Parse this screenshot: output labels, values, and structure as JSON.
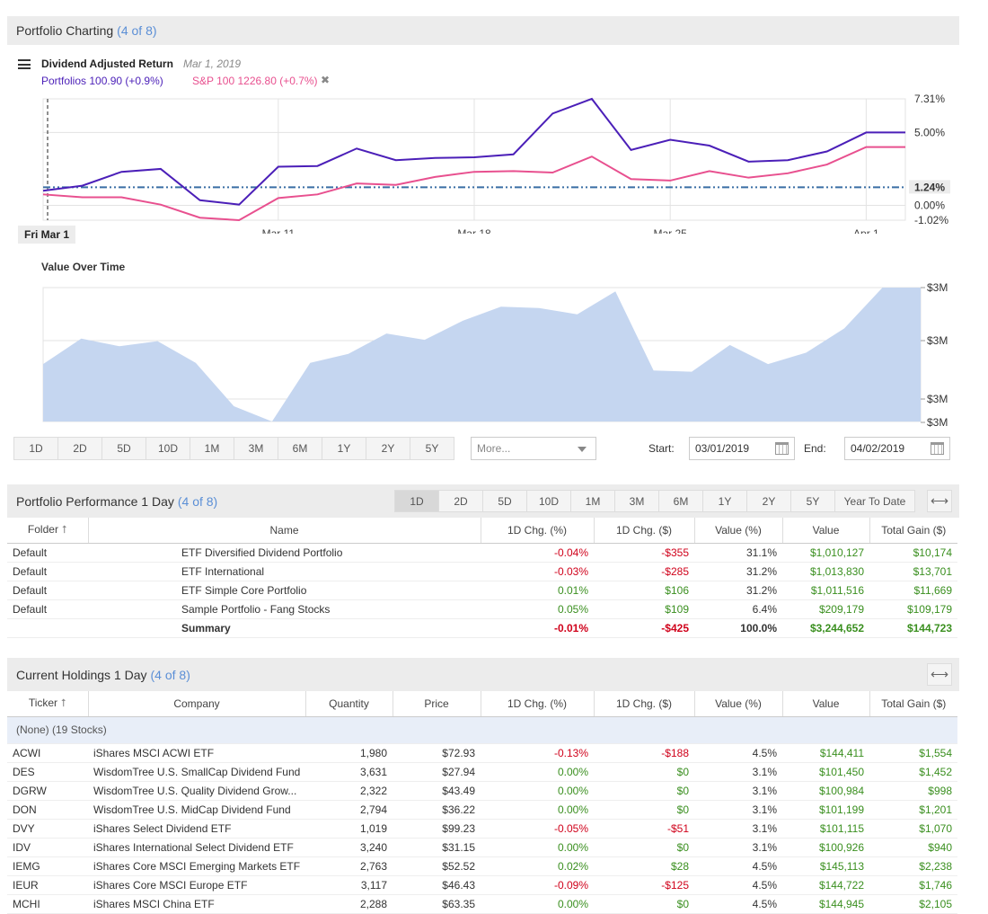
{
  "charting": {
    "title": "Portfolio Charting",
    "count": "(4 of 8)",
    "legend_title": "Dividend Adjusted Return",
    "legend_date": "Mar 1, 2019",
    "portfolio_legend": "Portfolios 100.90 (+0.9%)",
    "sp_legend": "S&P 100 1226.80 (+0.7%)",
    "remove_glyph": "✖",
    "current_date": "Fri Mar 1",
    "colors": {
      "portfolio": "#4b1fb8",
      "sp": "#e8508f",
      "baseline": "#3a6ea5",
      "area": "#c5d6f0"
    }
  },
  "chart_data": [
    {
      "type": "line",
      "title": "",
      "x_ticks": [
        "Mar 11",
        "Mar 18",
        "Mar 25",
        "Apr 1"
      ],
      "y_ticks": [
        "7.31%",
        "5.00%",
        "1.24%",
        "0.00%",
        "-1.02%"
      ],
      "ylim": [
        -1.02,
        7.31
      ],
      "baseline_value": 1.24,
      "grid": true,
      "x": [
        "Mar 1",
        "Mar 4",
        "Mar 5",
        "Mar 6",
        "Mar 7",
        "Mar 8",
        "Mar 11",
        "Mar 12",
        "Mar 13",
        "Mar 14",
        "Mar 15",
        "Mar 18",
        "Mar 19",
        "Mar 20",
        "Mar 21",
        "Mar 22",
        "Mar 25",
        "Mar 26",
        "Mar 27",
        "Mar 28",
        "Mar 29",
        "Apr 1",
        "Apr 2"
      ],
      "series": [
        {
          "name": "Portfolios",
          "values": [
            1.0,
            1.35,
            2.3,
            2.5,
            0.35,
            0.05,
            2.65,
            2.7,
            3.9,
            3.1,
            3.25,
            3.3,
            3.5,
            6.3,
            7.31,
            3.8,
            4.5,
            4.1,
            3.0,
            3.1,
            3.7,
            5.0,
            5.0
          ]
        },
        {
          "name": "S&P 100",
          "values": [
            0.75,
            0.55,
            0.55,
            0.05,
            -0.85,
            -1.02,
            0.5,
            0.75,
            1.5,
            1.4,
            1.95,
            2.3,
            2.35,
            2.25,
            3.35,
            1.8,
            1.7,
            2.35,
            1.9,
            2.2,
            2.8,
            4.0,
            4.0
          ]
        }
      ]
    },
    {
      "type": "area",
      "title": "Value Over Time",
      "y_ticks": [
        "$3M",
        "$3M",
        "$3M",
        "$3M"
      ],
      "values": [
        3.205,
        3.225,
        3.219,
        3.223,
        3.206,
        3.172,
        3.16,
        3.206,
        3.213,
        3.229,
        3.224,
        3.239,
        3.25,
        3.249,
        3.244,
        3.262,
        3.2,
        3.199,
        3.22,
        3.205,
        3.214,
        3.233,
        3.265,
        3.265
      ],
      "ylim": [
        3.16,
        3.265
      ]
    }
  ],
  "range_buttons": [
    "1D",
    "2D",
    "5D",
    "10D",
    "1M",
    "3M",
    "6M",
    "1Y",
    "2Y",
    "5Y"
  ],
  "more_placeholder": "More...",
  "start_label": "Start:",
  "start_value": "03/01/2019",
  "end_label": "End:",
  "end_value": "04/02/2019",
  "performance": {
    "title": "Portfolio Performance 1 Day",
    "count": "(4 of 8)",
    "tabs": [
      "1D",
      "2D",
      "5D",
      "10D",
      "1M",
      "3M",
      "6M",
      "1Y",
      "2Y",
      "5Y",
      "Year To Date"
    ],
    "columns": [
      "Folder",
      "Name",
      "1D Chg. (%)",
      "1D Chg. ($)",
      "Value (%)",
      "Value",
      "Total Gain ($)"
    ],
    "rows": [
      {
        "folder": "Default",
        "name": "ETF Diversified Dividend Portfolio",
        "chg_pct": "-0.04%",
        "chg_usd": "-$355",
        "value_pct": "31.1%",
        "value": "$1,010,127",
        "gain": "$10,174"
      },
      {
        "folder": "Default",
        "name": "ETF International",
        "chg_pct": "-0.03%",
        "chg_usd": "-$285",
        "value_pct": "31.2%",
        "value": "$1,013,830",
        "gain": "$13,701"
      },
      {
        "folder": "Default",
        "name": "ETF Simple Core Portfolio",
        "chg_pct": "0.01%",
        "chg_usd": "$106",
        "value_pct": "31.2%",
        "value": "$1,011,516",
        "gain": "$11,669"
      },
      {
        "folder": "Default",
        "name": "Sample Portfolio - Fang Stocks",
        "chg_pct": "0.05%",
        "chg_usd": "$109",
        "value_pct": "6.4%",
        "value": "$209,179",
        "gain": "$109,179"
      }
    ],
    "summary": {
      "name": "Summary",
      "chg_pct": "-0.01%",
      "chg_usd": "-$425",
      "value_pct": "100.0%",
      "value": "$3,244,652",
      "gain": "$144,723"
    }
  },
  "holdings": {
    "title": "Current Holdings 1 Day",
    "count": "(4 of 8)",
    "columns": [
      "Ticker",
      "Company",
      "Quantity",
      "Price",
      "1D Chg. (%)",
      "1D Chg. ($)",
      "Value (%)",
      "Value",
      "Total Gain ($)"
    ],
    "group_label": "(None) (19 Stocks)",
    "rows": [
      {
        "ticker": "ACWI",
        "company": "iShares MSCI ACWI ETF",
        "qty": "1,980",
        "price": "$72.93",
        "chg_pct": "-0.13%",
        "chg_usd": "-$188",
        "value_pct": "4.5%",
        "value": "$144,411",
        "gain": "$1,554"
      },
      {
        "ticker": "DES",
        "company": "WisdomTree U.S. SmallCap Dividend Fund",
        "qty": "3,631",
        "price": "$27.94",
        "chg_pct": "0.00%",
        "chg_usd": "$0",
        "value_pct": "3.1%",
        "value": "$101,450",
        "gain": "$1,452"
      },
      {
        "ticker": "DGRW",
        "company": "WisdomTree U.S. Quality Dividend Grow...",
        "qty": "2,322",
        "price": "$43.49",
        "chg_pct": "0.00%",
        "chg_usd": "$0",
        "value_pct": "3.1%",
        "value": "$100,984",
        "gain": "$998"
      },
      {
        "ticker": "DON",
        "company": "WisdomTree U.S. MidCap Dividend Fund",
        "qty": "2,794",
        "price": "$36.22",
        "chg_pct": "0.00%",
        "chg_usd": "$0",
        "value_pct": "3.1%",
        "value": "$101,199",
        "gain": "$1,201"
      },
      {
        "ticker": "DVY",
        "company": "iShares Select Dividend ETF",
        "qty": "1,019",
        "price": "$99.23",
        "chg_pct": "-0.05%",
        "chg_usd": "-$51",
        "value_pct": "3.1%",
        "value": "$101,115",
        "gain": "$1,070"
      },
      {
        "ticker": "IDV",
        "company": "iShares International Select Dividend ETF",
        "qty": "3,240",
        "price": "$31.15",
        "chg_pct": "0.00%",
        "chg_usd": "$0",
        "value_pct": "3.1%",
        "value": "$100,926",
        "gain": "$940"
      },
      {
        "ticker": "IEMG",
        "company": "iShares Core MSCI Emerging Markets ETF",
        "qty": "2,763",
        "price": "$52.52",
        "chg_pct": "0.02%",
        "chg_usd": "$28",
        "value_pct": "4.5%",
        "value": "$145,113",
        "gain": "$2,238"
      },
      {
        "ticker": "IEUR",
        "company": "iShares Core MSCI Europe ETF",
        "qty": "3,117",
        "price": "$46.43",
        "chg_pct": "-0.09%",
        "chg_usd": "-$125",
        "value_pct": "4.5%",
        "value": "$144,722",
        "gain": "$1,746"
      },
      {
        "ticker": "MCHI",
        "company": "iShares MSCI China ETF",
        "qty": "2,288",
        "price": "$63.35",
        "chg_pct": "0.00%",
        "chg_usd": "$0",
        "value_pct": "4.5%",
        "value": "$144,945",
        "gain": "$2,105"
      }
    ]
  }
}
